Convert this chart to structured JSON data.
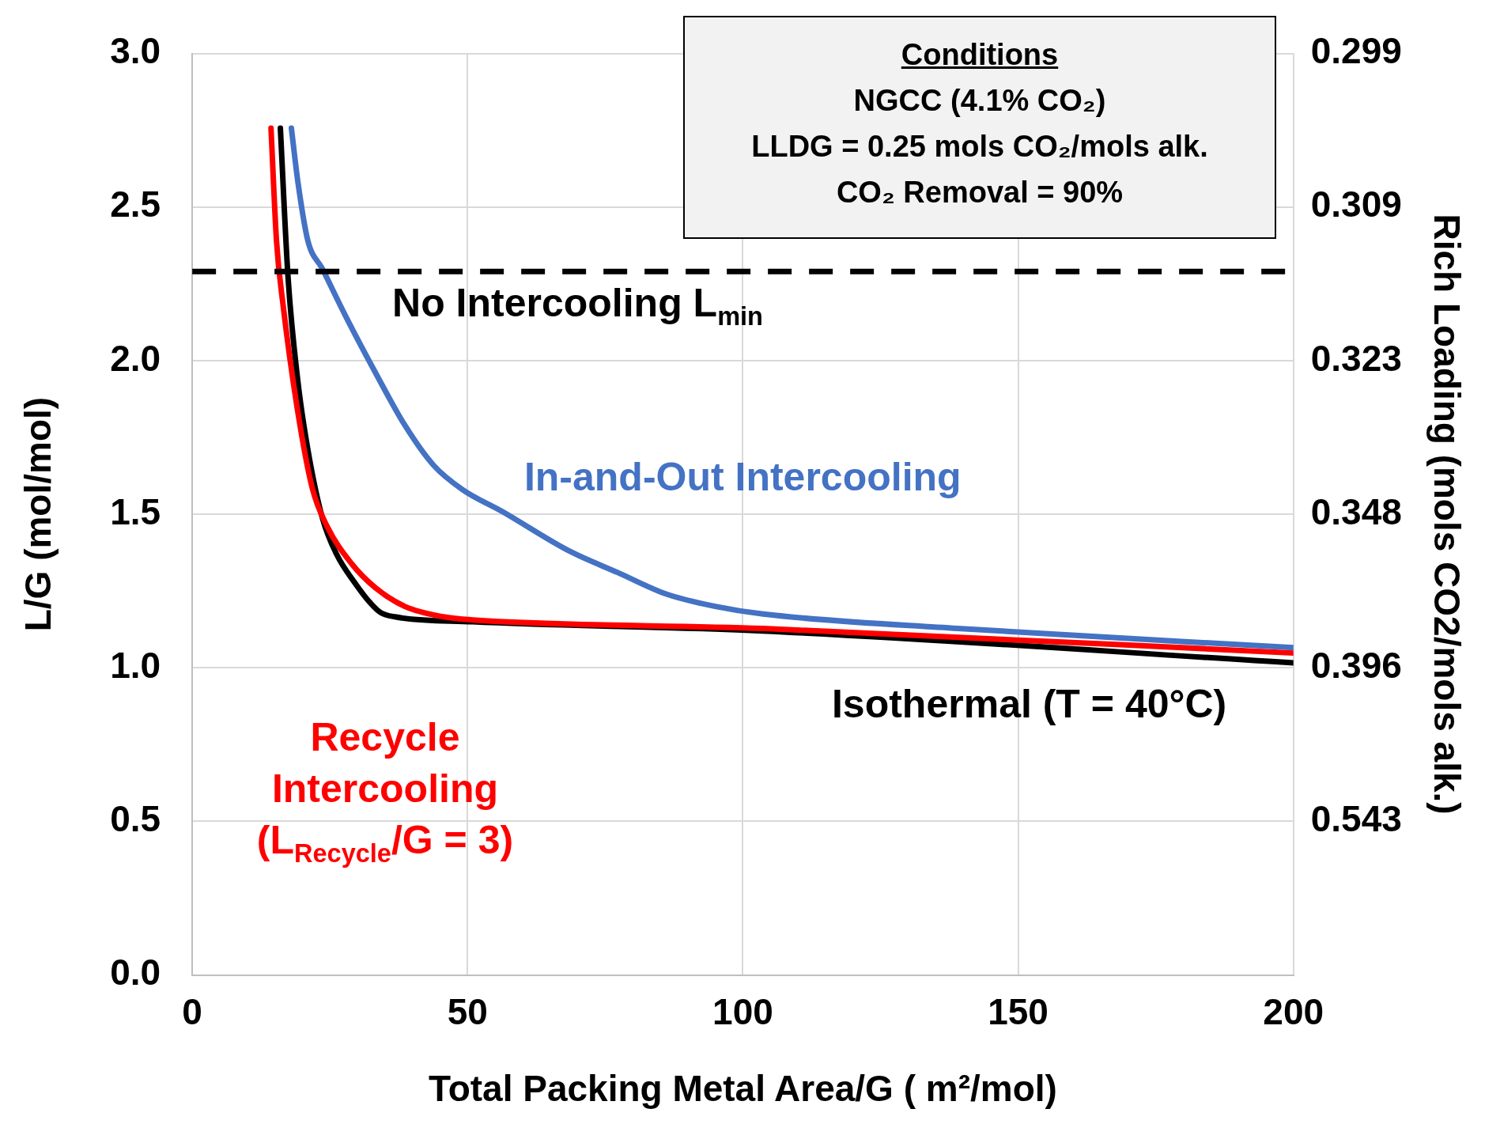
{
  "chart_data": {
    "type": "line",
    "xlabel": "Total Packing Metal Area/G ( m²/mol)",
    "ylabel": "L/G (mol/mol)",
    "y2label": "Rich Loading (mols CO2/mols alk.)",
    "xlim": [
      0,
      200
    ],
    "xticks": [
      0,
      50,
      100,
      150,
      200
    ],
    "ylim": [
      0,
      3
    ],
    "yticks": [
      {
        "value": 0,
        "label": "0.0"
      },
      {
        "value": 0.5,
        "label": "0.5"
      },
      {
        "value": 1,
        "label": "1.0"
      },
      {
        "value": 1.5,
        "label": "1.5"
      },
      {
        "value": 2,
        "label": "2.0"
      },
      {
        "value": 2.5,
        "label": "2.5"
      },
      {
        "value": 3,
        "label": "3.0"
      }
    ],
    "y2_categories": [
      "0.299",
      "0.309",
      "0.323",
      "0.348",
      "0.396",
      "0.543",
      null
    ],
    "grid": true,
    "legend": false,
    "marker": "none",
    "line_style": "solid",
    "series": [
      {
        "name": "Recycle Intercooling (L$_{Recycle}$/G = 3)",
        "color": "#ff0000",
        "x": [
          14.3,
          15.3,
          16.5,
          19.2,
          21.8,
          24.5,
          28.9,
          33.3,
          38.6,
          45.6,
          50.9,
          103.7,
          200
        ],
        "values": [
          2.757,
          2.39,
          2.18,
          1.83,
          1.585,
          1.46,
          1.34,
          1.26,
          1.2,
          1.166,
          1.156,
          1.128,
          1.048
        ]
      },
      {
        "name": "In-and-Out Intercooling",
        "color": "#4472c4",
        "x": [
          18,
          19.2,
          21,
          23.6,
          28,
          33.3,
          38.6,
          43.8,
          49.1,
          56.2,
          68.5,
          77.3,
          86.1,
          95,
          103.7,
          139,
          200
        ],
        "values": [
          2.757,
          2.58,
          2.39,
          2.3,
          2.14,
          1.96,
          1.79,
          1.66,
          1.58,
          1.51,
          1.38,
          1.31,
          1.24,
          1.2,
          1.175,
          1.128,
          1.066
        ]
      },
      {
        "name": "Isothermal (T = 40°C)",
        "color": "#000000",
        "x": [
          16,
          17.4,
          19.2,
          21,
          23.6,
          26.2,
          29.8,
          32.4,
          34.2,
          36.8,
          50.9,
          103.7,
          200
        ],
        "values": [
          2.757,
          2.27,
          1.93,
          1.71,
          1.49,
          1.37,
          1.27,
          1.21,
          1.18,
          1.166,
          1.15,
          1.12,
          1.016
        ]
      }
    ],
    "ref_lines": [
      {
        "axis": "y",
        "value": 2.29,
        "label": "No Intercooling L$_{min}$",
        "color": "#000000",
        "line_style": "dashed"
      }
    ],
    "annotations": [
      "Conditions",
      "NGCC (4.1% CO₂)",
      "LLDG = 0.25 mols CO₂/mols alk.",
      "CO₂ Removal = 90%"
    ]
  }
}
